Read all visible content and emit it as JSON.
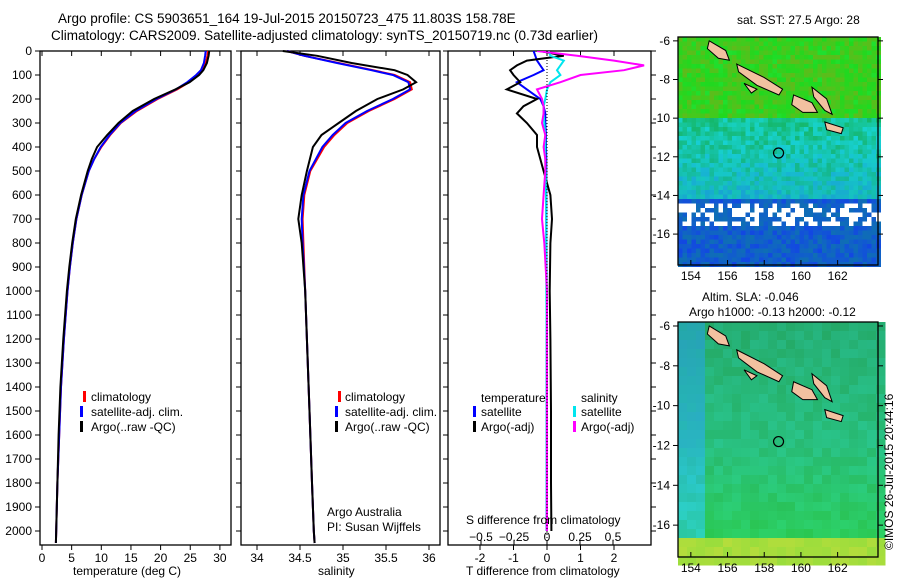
{
  "header": {
    "title_line1": "Argo profile: CS 5903651_164 19-Jul-2015 20150723_475 11.803S 158.78E",
    "title_line2": "Climatology: CARS2009. Satellite-adjusted climatology: synTS_20150719.nc (0.73d earlier)"
  },
  "colors": {
    "climatology": "#ff0000",
    "satellite": "#0000ff",
    "argo": "#000000",
    "sal_satellite": "#00e5ee",
    "sal_argo": "#ff00ff"
  },
  "chart_data": [
    {
      "type": "line",
      "id": "temperature",
      "xlabel": "temperature (deg C)",
      "ylabel": "",
      "xlim": [
        -1,
        31
      ],
      "ylim": [
        2060,
        0
      ],
      "xticks": [
        0,
        5,
        10,
        15,
        20,
        25,
        30
      ],
      "yticks": [
        0,
        100,
        200,
        300,
        400,
        500,
        600,
        700,
        800,
        900,
        1000,
        1100,
        1200,
        1300,
        1400,
        1500,
        1600,
        1700,
        1800,
        1900,
        2000
      ],
      "depth": [
        0,
        20,
        50,
        80,
        100,
        130,
        160,
        200,
        250,
        300,
        350,
        400,
        450,
        500,
        600,
        700,
        800,
        900,
        1000,
        1200,
        1400,
        1600,
        1800,
        2000,
        2050
      ],
      "series": [
        {
          "name": "climatology",
          "values": [
            28.0,
            27.9,
            27.6,
            27.0,
            26.3,
            24.8,
            22.8,
            19.5,
            16.0,
            13.3,
            11.5,
            10.0,
            8.8,
            7.9,
            6.7,
            5.8,
            5.2,
            4.7,
            4.3,
            3.7,
            3.2,
            2.9,
            2.6,
            2.4,
            2.35
          ]
        },
        {
          "name": "satellite-adj. clim.",
          "values": [
            27.6,
            27.5,
            27.3,
            26.8,
            26.0,
            24.5,
            22.6,
            19.3,
            15.8,
            13.2,
            11.4,
            9.9,
            8.8,
            7.9,
            6.7,
            5.8,
            5.2,
            4.7,
            4.3,
            3.7,
            3.2,
            2.9,
            2.6,
            2.4,
            2.35
          ]
        },
        {
          "name": "Argo(..raw -QC)",
          "values": [
            28.2,
            28.1,
            27.8,
            27.2,
            26.5,
            24.9,
            22.5,
            18.9,
            15.3,
            12.9,
            11.0,
            9.3,
            8.4,
            7.7,
            6.6,
            5.7,
            5.1,
            4.6,
            4.2,
            3.6,
            3.1,
            2.8,
            2.6,
            2.4,
            2.35
          ]
        }
      ],
      "legend": [
        "climatology",
        "satellite-adj. clim.",
        "Argo(..raw -QC)"
      ]
    },
    {
      "type": "line",
      "id": "salinity",
      "xlabel": "salinity",
      "xlim": [
        33.8,
        36.1
      ],
      "ylim": [
        2060,
        0
      ],
      "xticks": [
        34,
        34.5,
        35,
        35.5,
        36
      ],
      "depth": [
        0,
        20,
        50,
        80,
        100,
        130,
        160,
        200,
        250,
        300,
        350,
        400,
        500,
        600,
        700,
        800,
        1000,
        1200,
        1500,
        1800,
        2000,
        2050
      ],
      "series": [
        {
          "name": "climatology",
          "values": [
            34.35,
            34.55,
            34.95,
            35.35,
            35.6,
            35.78,
            35.8,
            35.6,
            35.3,
            35.05,
            34.9,
            34.78,
            34.62,
            34.55,
            34.53,
            34.54,
            34.56,
            34.58,
            34.61,
            34.64,
            34.66,
            34.67
          ]
        },
        {
          "name": "satellite-adj. clim.",
          "values": [
            34.35,
            34.55,
            34.93,
            35.33,
            35.58,
            35.76,
            35.78,
            35.58,
            35.28,
            35.03,
            34.88,
            34.76,
            34.61,
            34.54,
            34.52,
            34.53,
            34.56,
            34.58,
            34.61,
            34.64,
            34.66,
            34.67
          ]
        },
        {
          "name": "Argo(..raw -QC)",
          "values": [
            34.3,
            34.7,
            35.1,
            35.6,
            35.75,
            35.85,
            35.7,
            35.4,
            35.15,
            34.95,
            34.75,
            34.65,
            34.58,
            34.52,
            34.48,
            34.52,
            34.56,
            34.58,
            34.61,
            34.64,
            34.66,
            34.67
          ]
        }
      ],
      "legend": [
        "climatology",
        "satellite-adj. clim.",
        "Argo(..raw -QC)"
      ],
      "annotation": [
        "Argo Australia",
        "PI: Susan Wijffels"
      ]
    },
    {
      "type": "line",
      "id": "difference",
      "xlabel": "T difference from climatology",
      "xlabel_top": "S difference from climatology",
      "xlim": [
        -2,
        2.9
      ],
      "ylim": [
        2060,
        0
      ],
      "xticks": [
        -2,
        -1,
        0,
        1,
        2
      ],
      "xticks_s": [
        -0.5,
        -0.25,
        0,
        0.25,
        0.5
      ],
      "depth": [
        0,
        20,
        40,
        60,
        80,
        100,
        130,
        160,
        200,
        230,
        260,
        300,
        350,
        400,
        450,
        500,
        600,
        700,
        800,
        1000,
        1200,
        1500,
        1800,
        2000
      ],
      "series": [
        {
          "name": "temperature satellite",
          "values": [
            -0.4,
            -0.35,
            -0.3,
            -0.2,
            -0.1,
            -0.4,
            -0.9,
            -0.6,
            -0.2,
            -0.1,
            -0.05,
            -0.05,
            -0.03,
            -0.03,
            -0.02,
            -0.02,
            -0.02,
            -0.02,
            -0.02,
            -0.01,
            -0.01,
            -0.01,
            -0.01,
            -0.01
          ]
        },
        {
          "name": "temperature Argo(-adj)",
          "values": [
            -0.2,
            0.5,
            -0.6,
            -0.9,
            -1.1,
            -1.0,
            -0.8,
            -1.2,
            -0.3,
            -0.7,
            -0.9,
            -0.6,
            -0.3,
            -0.3,
            -0.2,
            -0.1,
            0.1,
            0.15,
            0.1,
            0.08,
            0.1,
            0.12,
            0.12,
            0.13
          ]
        },
        {
          "name": "salinity satellite",
          "values": [
            0.05,
            0.1,
            0.5,
            0.4,
            0.3,
            0.4,
            0.1,
            0.0,
            -0.05,
            -0.1,
            -0.1,
            -0.08,
            -0.05,
            -0.05,
            -0.05,
            -0.04,
            -0.03,
            -0.02,
            -0.02,
            -0.02,
            -0.01,
            -0.01,
            -0.01,
            0.0
          ]
        },
        {
          "name": "salinity Argo(-adj)",
          "values": [
            -0.3,
            0.9,
            2.0,
            2.9,
            2.3,
            1.0,
            0.4,
            -0.3,
            -0.15,
            -0.1,
            -0.1,
            -0.15,
            -0.05,
            -0.1,
            -0.05,
            -0.05,
            -0.1,
            -0.15,
            -0.08,
            0.0,
            0.0,
            0.0,
            0.0,
            0.0
          ]
        }
      ],
      "legend": {
        "temperature_heading": "temperature",
        "salinity_heading": "salinity",
        "t_sat": "satellite",
        "t_argo": "Argo(-adj)",
        "s_sat": "satellite",
        "s_argo": "Argo(-adj)"
      }
    },
    {
      "type": "heatmap",
      "id": "sst_map",
      "title": "sat. SST: 27.5 Argo: 28",
      "xlim": [
        153.3,
        164.2
      ],
      "ylim": [
        -17.6,
        -5.8
      ],
      "xticks": [
        154,
        156,
        158,
        160,
        162
      ],
      "yticks": [
        -6,
        -8,
        -10,
        -12,
        -14,
        -16
      ],
      "argo_position": [
        158.78,
        -11.803
      ]
    },
    {
      "type": "heatmap",
      "id": "sla_map",
      "title": "Altim. SLA: -0.046",
      "subtitle": "Argo h1000: -0.13 h2000: -0.12",
      "xlim": [
        153.3,
        164.2
      ],
      "ylim": [
        -17.6,
        -5.8
      ],
      "xticks": [
        154,
        156,
        158,
        160,
        162
      ],
      "yticks": [
        -6,
        -8,
        -10,
        -12,
        -14,
        -16
      ],
      "argo_position": [
        158.78,
        -11.803
      ]
    }
  ],
  "footer": {
    "credit": "©IMOS 26-Jul-2015 20:44:16"
  }
}
